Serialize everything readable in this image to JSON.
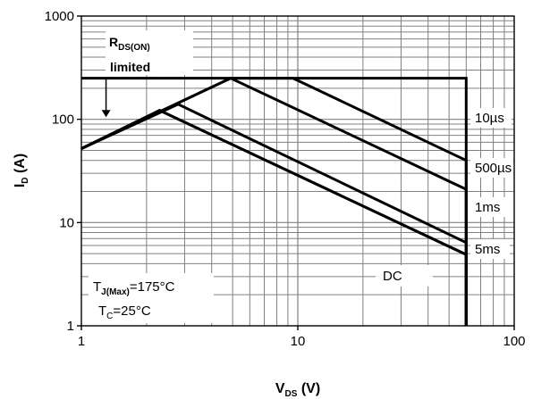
{
  "chart_data": {
    "type": "line",
    "title": "",
    "xlabel": {
      "main": "V",
      "sub": "DS",
      "suffix": " (V)"
    },
    "ylabel": {
      "main": "I",
      "sub": "D",
      "suffix": " (A)"
    },
    "x_scale": "log",
    "y_scale": "log",
    "xlim": [
      1,
      100
    ],
    "ylim": [
      1,
      1000
    ],
    "grid": true,
    "x_ticks": [
      {
        "value": 1,
        "label": "1"
      },
      {
        "value": 10,
        "label": "10"
      },
      {
        "value": 100,
        "label": "100"
      }
    ],
    "y_ticks": [
      {
        "value": 1,
        "label": "1"
      },
      {
        "value": 10,
        "label": "10"
      },
      {
        "value": 100,
        "label": "100"
      },
      {
        "value": 1000,
        "label": "1000"
      }
    ],
    "series": [
      {
        "name": "10µs",
        "points": [
          [
            1,
            52
          ],
          [
            4.9,
            250
          ],
          [
            9.5,
            250
          ],
          [
            60,
            40
          ],
          [
            60,
            1
          ]
        ]
      },
      {
        "name": "500µs",
        "points": [
          [
            1,
            52
          ],
          [
            4.9,
            250
          ],
          [
            60,
            21
          ],
          [
            60,
            1
          ]
        ]
      },
      {
        "name": "1ms",
        "points": [
          [
            1,
            52
          ],
          [
            2.8,
            140
          ],
          [
            60,
            6.4
          ],
          [
            60,
            1
          ]
        ]
      },
      {
        "name": "5ms",
        "points": [
          [
            1,
            52
          ],
          [
            2.3,
            122
          ],
          [
            60,
            4.9
          ],
          [
            60,
            1
          ]
        ]
      },
      {
        "name": "DC",
        "points": [
          [
            1,
            52
          ],
          [
            2.3,
            122
          ],
          [
            60,
            4.9
          ],
          [
            60,
            1
          ]
        ]
      }
    ],
    "limit_line": {
      "points": [
        [
          1,
          250
        ],
        [
          4.9,
          250
        ],
        [
          60,
          250
        ],
        [
          60,
          1
        ]
      ]
    },
    "rds_on_limit": {
      "y": 250,
      "x_start": 1,
      "x_end": 4.9,
      "arrow_x": 1.3,
      "arrow_to_y": 105
    },
    "annotations": {
      "rds_on": {
        "main": "R",
        "sub": "DS(ON)"
      },
      "rds_limited": "limited",
      "labels": {
        "10us": "10µs",
        "500us": "500µs",
        "1ms": "1ms",
        "5ms": "5ms",
        "dc": "DC"
      },
      "tj": {
        "main": "T",
        "sub": "J(Max)",
        "suffix": "=175°C"
      },
      "tc": {
        "main": "T",
        "sub": "C",
        "suffix": "=25°C"
      }
    }
  }
}
